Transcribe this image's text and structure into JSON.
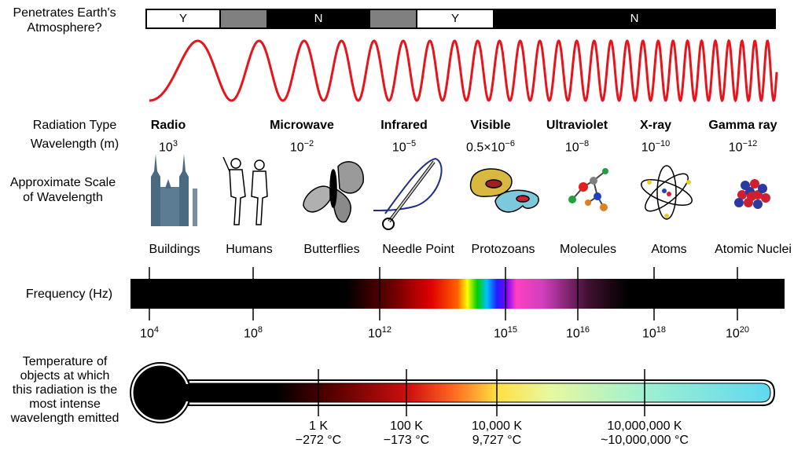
{
  "atmosphere": {
    "label_line1": "Penetrates Earth's",
    "label_line2": "Atmosphere?",
    "segments": [
      {
        "text": "Y",
        "fill": "#ffffff"
      },
      {
        "text": "",
        "fill": "#808080"
      },
      {
        "text": "N",
        "fill": "#000000"
      },
      {
        "text": "",
        "fill": "#808080"
      },
      {
        "text": "Y",
        "fill": "#ffffff"
      },
      {
        "text": "N",
        "fill": "#000000"
      }
    ]
  },
  "wave": {
    "color": "#e8141c"
  },
  "rows": {
    "radiation_type": "Radiation Type",
    "wavelength": "Wavelength (m)",
    "scale_line1": "Approximate Scale",
    "scale_line2": "of Wavelength",
    "frequency": "Frequency (Hz)",
    "temp_line1": "Temperature of",
    "temp_line2": "objects at which",
    "temp_line3": "this radiation is the",
    "temp_line4": "most intense",
    "temp_line5": "wavelength emitted"
  },
  "types": [
    {
      "name": "Radio",
      "wl_base": "10",
      "wl_exp": "3",
      "object": "Buildings",
      "icon": "buildings-icon"
    },
    {
      "name": "Microwave",
      "wl_base": "10",
      "wl_exp": "−2",
      "object": "Humans",
      "icon": "humans-icon"
    },
    {
      "name": "Infrared",
      "wl_base": "10",
      "wl_exp": "−5",
      "object": "Butterflies",
      "icon": "butterfly-icon"
    },
    {
      "name": "Visible",
      "wl_base": "0.5×10",
      "wl_exp": "−6",
      "object": "Needle Point",
      "icon": "needle-icon"
    },
    {
      "name": "Ultraviolet",
      "wl_base": "10",
      "wl_exp": "−8",
      "object": "Protozoans",
      "icon": "protozoa-icon"
    },
    {
      "name": "X-ray",
      "wl_base": "10",
      "wl_exp": "−10",
      "object": "Molecules",
      "icon": "molecule-icon"
    },
    {
      "name": "Gamma ray",
      "wl_base": "10",
      "wl_exp": "−12",
      "object": "Atoms",
      "icon": "atom-icon"
    }
  ],
  "extra_object": "Atomic Nuclei",
  "frequency_ticks": [
    {
      "base": "10",
      "exp": "4"
    },
    {
      "base": "10",
      "exp": "8"
    },
    {
      "base": "10",
      "exp": "12"
    },
    {
      "base": "10",
      "exp": "15"
    },
    {
      "base": "10",
      "exp": "16"
    },
    {
      "base": "10",
      "exp": "18"
    },
    {
      "base": "10",
      "exp": "20"
    }
  ],
  "temperature_ticks": [
    {
      "k": "1 K",
      "c": "−272 °C"
    },
    {
      "k": "100 K",
      "c": "−173 °C"
    },
    {
      "k": "10,000 K",
      "c": "9,727 °C"
    },
    {
      "k": "10,000,000 K",
      "c": "~10,000,000 °C"
    }
  ]
}
